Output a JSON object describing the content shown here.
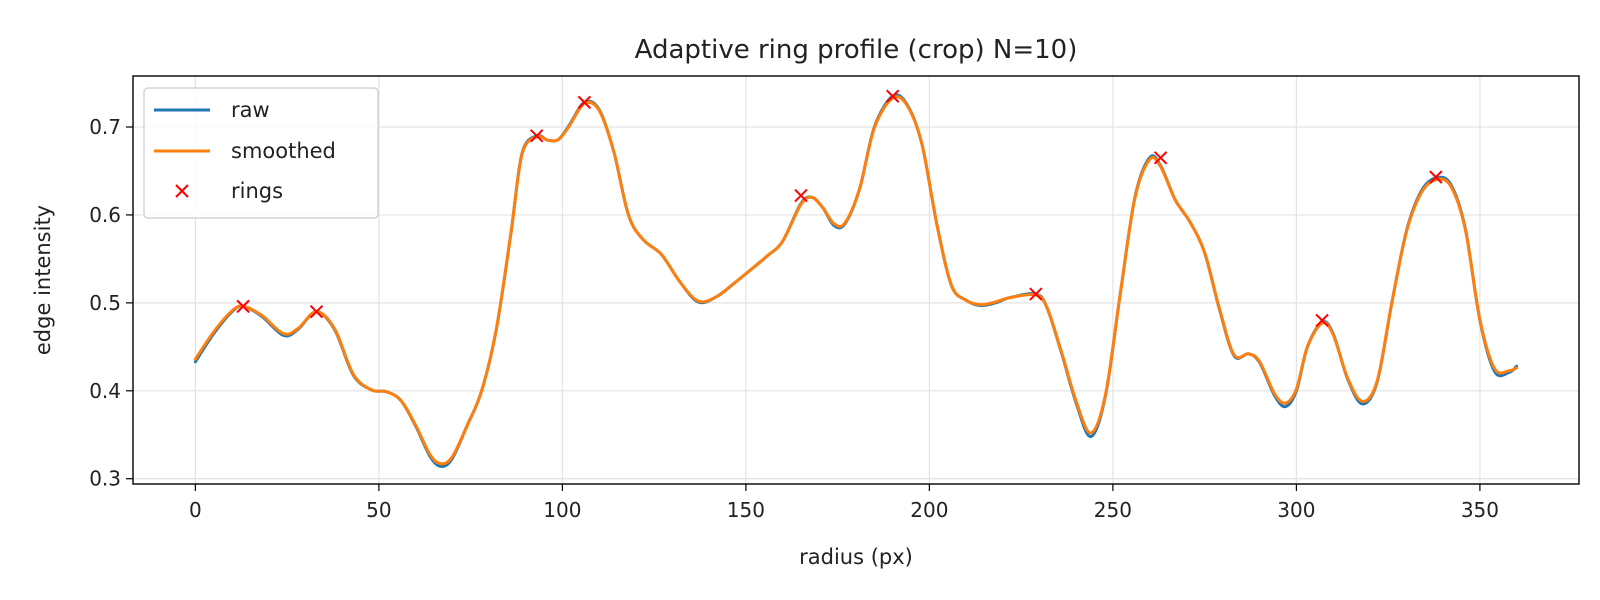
{
  "chart_data": {
    "type": "line",
    "title": "Adaptive ring profile (crop) N=10)",
    "xlabel": "radius (px)",
    "ylabel": "edge intensity",
    "xlim": [
      -17,
      377
    ],
    "ylim": [
      0.294,
      0.758
    ],
    "xticks": [
      0,
      50,
      100,
      150,
      200,
      250,
      300,
      350
    ],
    "yticks": [
      0.3,
      0.4,
      0.5,
      0.6,
      0.7
    ],
    "ytick_labels": [
      "0.3",
      "0.4",
      "0.5",
      "0.6",
      "0.7"
    ],
    "grid": true,
    "legend_position": "top-left",
    "legend": [
      "raw",
      "smoothed",
      "rings"
    ],
    "series": [
      {
        "name": "raw",
        "color": "#1f77b4",
        "x": [
          0,
          5,
          10,
          13,
          18,
          24,
          28,
          33,
          38,
          43,
          48,
          52,
          56,
          60,
          64,
          67,
          70,
          74,
          78,
          82,
          86,
          89,
          93,
          96,
          99,
          102,
          106,
          110,
          114,
          118,
          122,
          127,
          132,
          137,
          142,
          147,
          152,
          156,
          160,
          165,
          168,
          171,
          174,
          177,
          181,
          185,
          190,
          194,
          198,
          202,
          206,
          210,
          214,
          218,
          222,
          229,
          232,
          236,
          240,
          244,
          248,
          252,
          256,
          260,
          263,
          267,
          271,
          275,
          279,
          283,
          287,
          290,
          294,
          297,
          300,
          303,
          307,
          310,
          314,
          318,
          322,
          326,
          330,
          334,
          338,
          342,
          346,
          350,
          354,
          358,
          360
        ],
        "y": [
          0.433,
          0.465,
          0.49,
          0.496,
          0.485,
          0.463,
          0.47,
          0.49,
          0.469,
          0.418,
          0.401,
          0.399,
          0.389,
          0.36,
          0.325,
          0.314,
          0.323,
          0.36,
          0.4,
          0.47,
          0.58,
          0.67,
          0.69,
          0.685,
          0.686,
          0.703,
          0.728,
          0.72,
          0.672,
          0.6,
          0.572,
          0.555,
          0.524,
          0.501,
          0.507,
          0.523,
          0.54,
          0.554,
          0.57,
          0.613,
          0.62,
          0.608,
          0.588,
          0.59,
          0.63,
          0.7,
          0.735,
          0.725,
          0.68,
          0.59,
          0.52,
          0.503,
          0.497,
          0.5,
          0.506,
          0.51,
          0.495,
          0.443,
          0.386,
          0.348,
          0.395,
          0.51,
          0.62,
          0.665,
          0.656,
          0.617,
          0.592,
          0.557,
          0.493,
          0.44,
          0.442,
          0.432,
          0.395,
          0.382,
          0.4,
          0.45,
          0.478,
          0.465,
          0.413,
          0.385,
          0.41,
          0.5,
          0.582,
          0.627,
          0.642,
          0.635,
          0.585,
          0.48,
          0.422,
          0.421,
          0.428
        ]
      },
      {
        "name": "smoothed",
        "color": "#ff7f0e",
        "x": [
          0,
          5,
          10,
          13,
          18,
          24,
          28,
          33,
          38,
          43,
          48,
          52,
          56,
          60,
          64,
          67,
          70,
          74,
          78,
          82,
          86,
          89,
          93,
          96,
          99,
          102,
          106,
          110,
          114,
          118,
          122,
          127,
          132,
          137,
          142,
          147,
          152,
          156,
          160,
          165,
          168,
          171,
          174,
          177,
          181,
          185,
          190,
          194,
          198,
          202,
          206,
          210,
          214,
          218,
          222,
          229,
          232,
          236,
          240,
          244,
          248,
          252,
          256,
          260,
          263,
          267,
          271,
          275,
          279,
          283,
          287,
          290,
          294,
          297,
          300,
          303,
          307,
          310,
          314,
          318,
          322,
          326,
          330,
          334,
          338,
          342,
          346,
          350,
          354,
          358,
          360
        ],
        "y": [
          0.436,
          0.467,
          0.491,
          0.496,
          0.486,
          0.465,
          0.471,
          0.49,
          0.47,
          0.419,
          0.401,
          0.399,
          0.389,
          0.361,
          0.327,
          0.317,
          0.325,
          0.36,
          0.4,
          0.47,
          0.58,
          0.669,
          0.689,
          0.685,
          0.686,
          0.702,
          0.727,
          0.719,
          0.672,
          0.6,
          0.572,
          0.555,
          0.524,
          0.502,
          0.507,
          0.523,
          0.54,
          0.554,
          0.57,
          0.612,
          0.62,
          0.608,
          0.59,
          0.591,
          0.63,
          0.699,
          0.733,
          0.724,
          0.68,
          0.59,
          0.52,
          0.503,
          0.498,
          0.501,
          0.506,
          0.509,
          0.495,
          0.444,
          0.388,
          0.352,
          0.396,
          0.51,
          0.619,
          0.663,
          0.655,
          0.617,
          0.592,
          0.557,
          0.494,
          0.441,
          0.442,
          0.433,
          0.397,
          0.386,
          0.402,
          0.45,
          0.477,
          0.464,
          0.414,
          0.388,
          0.411,
          0.5,
          0.581,
          0.625,
          0.64,
          0.633,
          0.584,
          0.481,
          0.425,
          0.423,
          0.426
        ]
      }
    ],
    "markers": {
      "name": "rings",
      "color": "#ff0000",
      "x": [
        13,
        33,
        93,
        106,
        165,
        190,
        229,
        263,
        307,
        338
      ],
      "y": [
        0.496,
        0.49,
        0.69,
        0.728,
        0.622,
        0.735,
        0.51,
        0.665,
        0.48,
        0.643
      ]
    }
  }
}
